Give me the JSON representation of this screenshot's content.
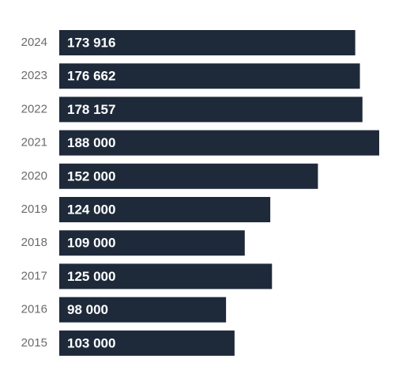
{
  "chart_data": {
    "type": "bar",
    "orientation": "horizontal",
    "categories": [
      "2024",
      "2023",
      "2022",
      "2021",
      "2020",
      "2019",
      "2018",
      "2017",
      "2016",
      "2015"
    ],
    "values": [
      173916,
      176662,
      178157,
      188000,
      152000,
      124000,
      109000,
      125000,
      98000,
      103000
    ],
    "value_labels": [
      "173 916",
      "176 662",
      "178 157",
      "188 000",
      "152 000",
      "124 000",
      "109 000",
      "125 000",
      "98 000",
      "103 000"
    ],
    "color": "#1e2a3a"
  }
}
